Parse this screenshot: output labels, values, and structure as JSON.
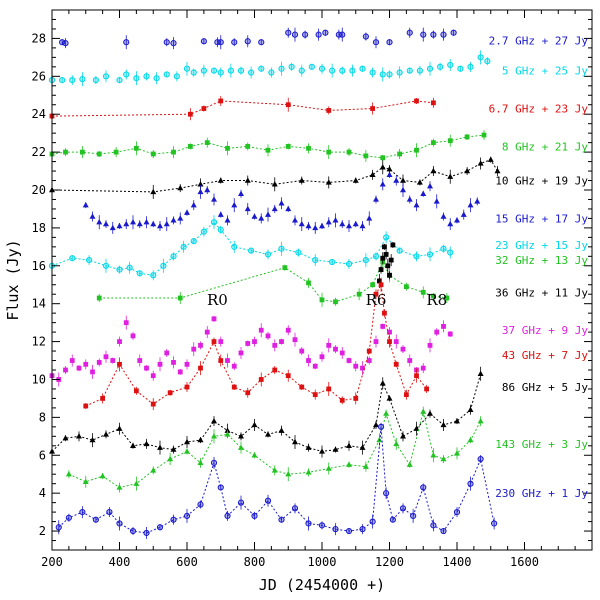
{
  "chart_data": {
    "type": "scatter",
    "xlabel": "JD (2454000 +)",
    "ylabel": "Flux (Jy)",
    "xlim": [
      200,
      1800
    ],
    "ylim": [
      1,
      29.5
    ],
    "xticks": [
      200,
      400,
      600,
      800,
      1000,
      1200,
      1400,
      1600
    ],
    "yticks": [
      2,
      4,
      6,
      8,
      10,
      12,
      14,
      16,
      18,
      20,
      22,
      24,
      26,
      28
    ],
    "grid": false,
    "legend": "right-side inline labels",
    "annotations": [
      {
        "text": "R0",
        "x": 690,
        "y": 14.2
      },
      {
        "text": "R6",
        "x": 1160,
        "y": 14.2
      },
      {
        "text": "R8",
        "x": 1340,
        "y": 14.2
      }
    ],
    "series": [
      {
        "name": "2.7 GHz + 27 Jy",
        "color": "#1a1acc",
        "marker": "circle",
        "line": false,
        "label_y": 27.9,
        "x": [
          230,
          240,
          420,
          540,
          560,
          650,
          690,
          700,
          740,
          780,
          820,
          900,
          920,
          950,
          990,
          1010,
          1050,
          1060,
          1130,
          1160,
          1200,
          1260,
          1300,
          1330,
          1360,
          1390
        ],
        "y": [
          27.8,
          27.75,
          27.8,
          27.8,
          27.75,
          27.85,
          27.8,
          27.8,
          27.8,
          27.85,
          27.8,
          28.3,
          28.2,
          28.2,
          28.2,
          28.3,
          28.2,
          28.2,
          28.1,
          27.8,
          27.8,
          28.3,
          28.2,
          28.2,
          28.2,
          28.3
        ]
      },
      {
        "name": "5 GHz + 25 Jy",
        "color": "#00d8e8",
        "marker": "circle",
        "line": false,
        "label_y": 26.3,
        "x": [
          200,
          230,
          260,
          290,
          330,
          360,
          400,
          420,
          450,
          480,
          510,
          540,
          570,
          600,
          620,
          650,
          680,
          700,
          730,
          760,
          790,
          820,
          850,
          880,
          910,
          940,
          970,
          1000,
          1030,
          1060,
          1090,
          1120,
          1150,
          1180,
          1200,
          1230,
          1260,
          1290,
          1320,
          1350,
          1380,
          1410,
          1440,
          1470,
          1490
        ],
        "y": [
          25.8,
          25.8,
          25.8,
          25.85,
          25.8,
          26.0,
          25.8,
          26.1,
          25.9,
          26.0,
          25.9,
          26.1,
          26.0,
          26.4,
          26.2,
          26.3,
          26.3,
          26.2,
          26.3,
          26.3,
          26.2,
          26.4,
          26.2,
          26.4,
          26.5,
          26.3,
          26.5,
          26.4,
          26.3,
          26.3,
          26.3,
          26.4,
          26.2,
          26.1,
          26.1,
          26.2,
          26.3,
          26.3,
          26.4,
          26.5,
          26.6,
          26.4,
          26.5,
          27.0,
          26.8
        ]
      },
      {
        "name": "6.7 GHz + 23 Jy",
        "color": "#dd1111",
        "marker": "square",
        "line": true,
        "label_y": 24.3,
        "x": [
          200,
          610,
          650,
          700,
          900,
          1020,
          1150,
          1280,
          1330
        ],
        "y": [
          23.9,
          24.0,
          24.3,
          24.7,
          24.5,
          24.2,
          24.3,
          24.7,
          24.6
        ]
      },
      {
        "name": "8 GHz + 21 Jy",
        "color": "#22c322",
        "marker": "square",
        "line": true,
        "label_y": 22.3,
        "x": [
          200,
          240,
          290,
          340,
          390,
          450,
          500,
          560,
          610,
          660,
          720,
          780,
          840,
          900,
          960,
          1020,
          1080,
          1130,
          1180,
          1230,
          1280,
          1330,
          1380,
          1430,
          1480
        ],
        "y": [
          21.9,
          22.0,
          22.0,
          21.9,
          22.0,
          22.2,
          21.9,
          22.0,
          22.3,
          22.5,
          22.2,
          22.3,
          22.1,
          22.3,
          22.2,
          22.0,
          22.0,
          21.8,
          21.7,
          21.9,
          22.1,
          22.5,
          22.6,
          22.8,
          22.9
        ]
      },
      {
        "name": "10 GHz + 19 Jy",
        "color": "#000000",
        "marker": "triangle",
        "line": true,
        "label_y": 20.5,
        "x": [
          200,
          500,
          580,
          640,
          700,
          780,
          860,
          940,
          1020,
          1100,
          1150,
          1180,
          1200,
          1240,
          1290,
          1330,
          1380,
          1430,
          1470,
          1500,
          1520
        ],
        "y": [
          20.0,
          19.9,
          20.1,
          20.3,
          20.5,
          20.5,
          20.3,
          20.5,
          20.4,
          20.5,
          20.8,
          21.2,
          21.1,
          20.5,
          20.4,
          21.0,
          20.7,
          21.0,
          21.4,
          21.6,
          21.0
        ]
      },
      {
        "name": "15 GHz + 17 Jy",
        "color": "#1a1acc",
        "marker": "triangle",
        "line": false,
        "label_y": 18.5,
        "x": [
          300,
          320,
          340,
          360,
          380,
          400,
          420,
          440,
          460,
          480,
          500,
          520,
          540,
          560,
          580,
          600,
          620,
          640,
          660,
          680,
          700,
          720,
          740,
          760,
          780,
          800,
          820,
          840,
          860,
          880,
          900,
          920,
          940,
          960,
          980,
          1000,
          1020,
          1040,
          1060,
          1080,
          1100,
          1120,
          1140,
          1160,
          1180,
          1200,
          1220,
          1240,
          1260,
          1280,
          1300,
          1320,
          1340,
          1360,
          1380,
          1400,
          1420,
          1440,
          1460
        ],
        "y": [
          19.2,
          18.6,
          18.3,
          18.2,
          18.0,
          18.1,
          18.2,
          18.3,
          18.2,
          18.3,
          18.2,
          18.1,
          18.2,
          18.4,
          18.5,
          18.8,
          19.2,
          19.9,
          20.0,
          19.5,
          18.7,
          18.4,
          19.2,
          19.8,
          19.0,
          18.6,
          18.5,
          18.7,
          19.0,
          19.3,
          19.0,
          18.4,
          18.2,
          18.1,
          18.0,
          18.1,
          18.3,
          18.4,
          18.2,
          18.1,
          18.2,
          18.1,
          18.5,
          19.5,
          20.3,
          20.8,
          20.5,
          20.0,
          19.5,
          19.2,
          19.8,
          20.2,
          19.4,
          18.6,
          18.2,
          18.4,
          18.7,
          19.2,
          19.4
        ]
      },
      {
        "name": "23 GHz + 15 Jy",
        "color": "#00d8e8",
        "marker": "circle",
        "line": true,
        "label_y": 17.1,
        "x": [
          200,
          260,
          310,
          360,
          400,
          430,
          460,
          500,
          530,
          560,
          590,
          620,
          650,
          680,
          700,
          740,
          790,
          840,
          880,
          930,
          980,
          1030,
          1080,
          1130,
          1160,
          1190,
          1230,
          1280,
          1320,
          1360,
          1380
        ],
        "y": [
          16.0,
          16.4,
          16.3,
          16.0,
          15.8,
          15.9,
          15.6,
          15.5,
          16.0,
          16.5,
          17.0,
          17.3,
          17.8,
          18.3,
          17.9,
          17.0,
          16.8,
          16.6,
          16.9,
          16.7,
          16.3,
          16.2,
          16.1,
          16.3,
          16.5,
          17.5,
          16.8,
          16.5,
          16.6,
          16.9,
          16.7
        ]
      },
      {
        "name": "32 GHz + 13 Jy",
        "color": "#22c322",
        "marker": "square",
        "line": true,
        "label_y": 16.3,
        "x": [
          340,
          580,
          890,
          960,
          1000,
          1040,
          1110,
          1150,
          1180,
          1200,
          1250,
          1300,
          1330,
          1370
        ],
        "y": [
          14.3,
          14.3,
          15.9,
          15.1,
          14.2,
          14.1,
          14.5,
          15.0,
          16.2,
          15.5,
          14.9,
          14.6,
          14.4,
          14.3
        ]
      },
      {
        "name": "36 GHz + 11 Jy",
        "color": "#000000",
        "marker": "square",
        "line": false,
        "label_y": 14.6,
        "x": [
          1170,
          1175,
          1180,
          1185,
          1190,
          1195,
          1200,
          1205,
          1210
        ],
        "y": [
          15.2,
          15.8,
          16.4,
          17.0,
          16.6,
          16.0,
          15.5,
          16.3,
          17.1
        ]
      },
      {
        "name": "37 GHz + 9 Jy",
        "color": "#e020e0",
        "marker": "square",
        "line": false,
        "label_y": 12.6,
        "x": [
          200,
          220,
          240,
          260,
          280,
          300,
          320,
          340,
          360,
          380,
          400,
          420,
          440,
          460,
          480,
          500,
          520,
          540,
          560,
          580,
          600,
          620,
          640,
          660,
          680,
          700,
          720,
          740,
          760,
          780,
          800,
          820,
          840,
          860,
          880,
          900,
          920,
          940,
          960,
          980,
          1000,
          1020,
          1040,
          1060,
          1080,
          1100,
          1120,
          1140,
          1160,
          1180,
          1200,
          1220,
          1240,
          1260,
          1280,
          1300,
          1320,
          1340,
          1360,
          1380
        ],
        "y": [
          10.2,
          10.0,
          10.5,
          11.0,
          10.6,
          10.8,
          10.4,
          10.9,
          11.2,
          11.0,
          12.0,
          13.0,
          12.3,
          11.0,
          10.6,
          10.2,
          10.8,
          11.4,
          10.9,
          10.4,
          10.8,
          11.6,
          11.8,
          12.5,
          13.2,
          12.0,
          11.0,
          10.7,
          11.4,
          11.9,
          12.0,
          12.6,
          12.3,
          11.8,
          12.0,
          12.6,
          12.1,
          11.5,
          11.0,
          10.7,
          11.2,
          11.8,
          11.6,
          11.4,
          11.0,
          10.7,
          10.6,
          11.0,
          12.0,
          12.8,
          12.5,
          12.0,
          11.6,
          11.0,
          10.5,
          10.6,
          11.8,
          12.5,
          12.8,
          12.4
        ]
      },
      {
        "name": "43 GHz + 7 Jy",
        "color": "#dd1111",
        "marker": "square",
        "line": true,
        "label_y": 11.3,
        "x": [
          300,
          350,
          400,
          450,
          500,
          550,
          600,
          640,
          680,
          700,
          740,
          780,
          820,
          860,
          900,
          940,
          980,
          1020,
          1060,
          1100,
          1140,
          1160,
          1175,
          1185,
          1200,
          1220,
          1250,
          1280,
          1310
        ],
        "y": [
          8.6,
          9.0,
          10.8,
          9.4,
          8.7,
          9.3,
          9.6,
          10.6,
          12.0,
          11.0,
          9.6,
          9.3,
          10.0,
          10.5,
          10.2,
          9.6,
          9.2,
          9.5,
          8.9,
          9.0,
          11.5,
          14.5,
          15.0,
          13.5,
          12.0,
          10.8,
          9.2,
          10.2,
          9.5
        ]
      },
      {
        "name": "86 GHz + 5 Jy",
        "color": "#000000",
        "marker": "triangle",
        "line": true,
        "label_y": 9.6,
        "x": [
          200,
          240,
          280,
          320,
          360,
          400,
          440,
          480,
          520,
          560,
          600,
          640,
          680,
          720,
          760,
          800,
          840,
          880,
          920,
          960,
          1000,
          1040,
          1080,
          1120,
          1160,
          1180,
          1200,
          1240,
          1280,
          1320,
          1360,
          1400,
          1440,
          1470
        ],
        "y": [
          6.2,
          6.9,
          7.0,
          6.8,
          7.1,
          7.4,
          6.5,
          6.6,
          6.4,
          6.3,
          6.7,
          6.8,
          7.8,
          7.3,
          7.0,
          7.6,
          7.1,
          7.3,
          6.7,
          6.4,
          6.2,
          6.3,
          6.5,
          6.4,
          7.6,
          9.8,
          9.0,
          7.0,
          7.4,
          8.2,
          7.6,
          7.8,
          8.4,
          10.3
        ]
      },
      {
        "name": "143 GHz + 3 Jy",
        "color": "#22c322",
        "marker": "triangle",
        "line": true,
        "label_y": 6.6,
        "x": [
          250,
          300,
          350,
          400,
          450,
          500,
          550,
          600,
          640,
          680,
          720,
          760,
          800,
          860,
          900,
          960,
          1020,
          1080,
          1130,
          1170,
          1190,
          1220,
          1260,
          1300,
          1330,
          1360,
          1400,
          1440,
          1470
        ],
        "y": [
          5.0,
          4.6,
          4.9,
          4.3,
          4.5,
          5.2,
          5.8,
          6.2,
          5.6,
          7.0,
          7.1,
          6.4,
          6.0,
          5.2,
          5.0,
          5.1,
          5.3,
          5.5,
          5.4,
          6.8,
          8.2,
          6.6,
          5.5,
          8.3,
          6.0,
          5.8,
          6.1,
          6.8,
          7.8
        ]
      },
      {
        "name": "230 GHz + 1 Jy",
        "color": "#1a1acc",
        "marker": "circle",
        "line": true,
        "label_y": 4.0,
        "x": [
          220,
          250,
          290,
          330,
          370,
          400,
          440,
          480,
          520,
          560,
          600,
          640,
          680,
          700,
          720,
          760,
          800,
          840,
          880,
          920,
          960,
          1000,
          1040,
          1080,
          1120,
          1150,
          1175,
          1190,
          1210,
          1240,
          1270,
          1300,
          1330,
          1360,
          1400,
          1440,
          1470,
          1510
        ],
        "y": [
          2.2,
          2.7,
          3.0,
          2.6,
          3.0,
          2.4,
          2.0,
          1.9,
          2.2,
          2.6,
          2.8,
          3.4,
          5.6,
          4.3,
          2.8,
          3.5,
          2.8,
          3.6,
          2.6,
          3.2,
          2.4,
          2.3,
          2.1,
          2.0,
          2.1,
          2.5,
          7.5,
          4.0,
          2.6,
          3.2,
          2.8,
          4.3,
          2.3,
          2.0,
          3.0,
          4.5,
          5.8,
          2.4
        ]
      }
    ]
  }
}
